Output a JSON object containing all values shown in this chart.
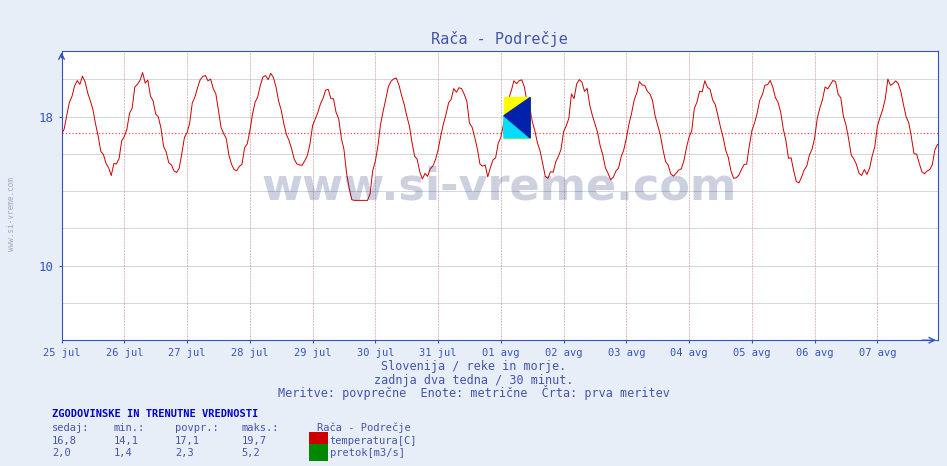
{
  "title": "Rača - Podrečje",
  "title_color": "#4455aa",
  "bg_color": "#e8eef8",
  "plot_bg_color": "#ffffff",
  "x_tick_labels": [
    "25 jul",
    "26 jul",
    "27 jul",
    "28 jul",
    "29 jul",
    "30 jul",
    "31 jul",
    "01 avg",
    "02 avg",
    "03 avg",
    "04 avg",
    "05 avg",
    "06 avg",
    "07 avg"
  ],
  "ylim": [
    6.0,
    21.5
  ],
  "y_ticks": [
    10,
    18
  ],
  "temp_avg": 17.1,
  "flow_avg": 2.3,
  "temp_color": "#cc0000",
  "flow_color": "#008800",
  "avg_line_color_temp": "#cc4444",
  "avg_line_color_flow": "#44aa44",
  "axis_color": "#3355bb",
  "tick_color": "#3355bb",
  "subtitle1": "Slovenija / reke in morje.",
  "subtitle2": "zadnja dva tedna / 30 minut.",
  "subtitle3": "Meritve: povprečne  Enote: metrične  Črta: prva meritev",
  "subtitle_color": "#4455aa",
  "watermark": "www.si-vreme.com",
  "watermark_color": "#1a2a6e",
  "legend_title": "Rača - Podrečje",
  "legend_temp_label": "temperatura[C]",
  "legend_flow_label": "pretok[m3/s]",
  "table_header": "ZGODOVINSKE IN TRENUTNE VREDNOSTI",
  "table_cols": [
    "sedaj:",
    "min.:",
    "povpr.:",
    "maks.:"
  ],
  "table_temp": [
    "16,8",
    "14,1",
    "17,1",
    "19,7"
  ],
  "table_flow": [
    "2,0",
    "1,4",
    "2,3",
    "5,2"
  ],
  "dpi": 100,
  "figsize": [
    9.47,
    4.66
  ]
}
